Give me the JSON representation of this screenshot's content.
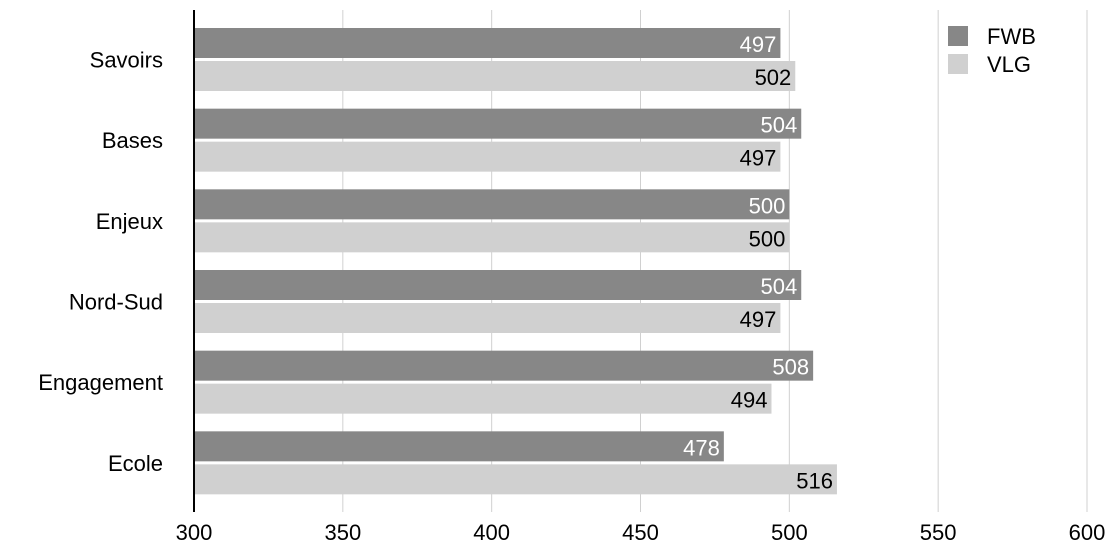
{
  "chart_data": {
    "type": "bar",
    "orientation": "horizontal",
    "title": "",
    "xlabel": "",
    "ylabel": "",
    "categories": [
      "Savoirs",
      "Bases",
      "Enjeux",
      "Nord-Sud",
      "Engagement",
      "Ecole"
    ],
    "series": [
      {
        "name": "FWB",
        "values": [
          497,
          504,
          500,
          504,
          508,
          478
        ],
        "color": "#878787",
        "label_color": "#ffffff"
      },
      {
        "name": "VLG",
        "values": [
          502,
          497,
          500,
          497,
          494,
          516
        ],
        "color": "#d0d0d0",
        "label_color": "#000000"
      }
    ],
    "xlim": [
      300,
      600
    ],
    "xticks": [
      300,
      350,
      400,
      450,
      500,
      550,
      600
    ],
    "grid": true,
    "legend_position": "top-right"
  }
}
